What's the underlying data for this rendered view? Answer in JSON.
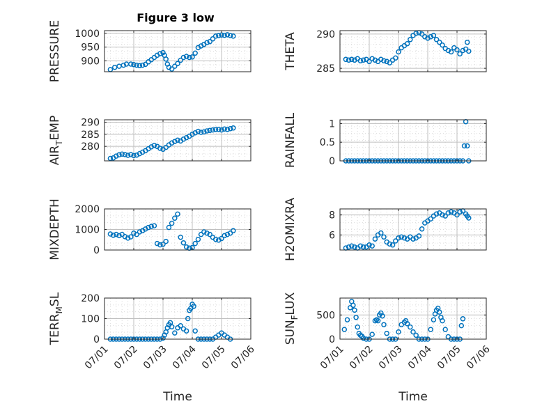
{
  "figure": {
    "title": "Figure 3 low"
  },
  "colors": {
    "marker": "#0072bd",
    "axis": "#262626",
    "grid": "#bfbfbf",
    "minor_grid": "#dcdcdc"
  },
  "chart_data": [
    {
      "type": "scatter",
      "title": "Figure 3 low",
      "xlabel": "",
      "ylabel": "PRESSURE",
      "ylim": [
        860,
        1010
      ],
      "yticks": [
        900,
        950,
        1000
      ],
      "ytick_labels": [
        "900",
        "950",
        "1000"
      ],
      "xlim": [
        0,
        5
      ],
      "xticks": [
        0,
        1,
        2,
        3,
        4,
        5
      ],
      "xtick_labels": [],
      "grid": true,
      "series": [
        {
          "x": [
            0.2,
            0.35,
            0.5,
            0.65,
            0.75,
            0.9,
            1.0,
            1.1,
            1.2,
            1.3,
            1.4,
            1.5,
            1.6,
            1.7,
            1.8,
            1.9,
            2.0,
            2.05,
            2.1,
            2.15,
            2.2,
            2.3,
            2.4,
            2.5,
            2.6,
            2.7,
            2.8,
            2.9,
            3.0,
            3.1,
            3.2,
            3.3,
            3.4,
            3.5,
            3.6,
            3.7,
            3.8,
            3.9,
            4.0,
            4.1,
            4.2,
            4.3,
            4.4
          ],
          "y": [
            868,
            876,
            880,
            884,
            888,
            888,
            886,
            884,
            882,
            884,
            887,
            896,
            904,
            912,
            920,
            926,
            930,
            920,
            906,
            888,
            876,
            870,
            880,
            890,
            902,
            912,
            916,
            912,
            914,
            928,
            948,
            954,
            960,
            966,
            970,
            980,
            990,
            992,
            994,
            993,
            995,
            992,
            990
          ]
        }
      ]
    },
    {
      "type": "scatter",
      "xlabel": "",
      "ylabel": "THETA",
      "ylim": [
        284.5,
        290.5
      ],
      "yticks": [
        285,
        290
      ],
      "ytick_labels": [
        "285",
        "290"
      ],
      "xlim": [
        0,
        5
      ],
      "xticks": [
        0,
        1,
        2,
        3,
        4,
        5
      ],
      "xtick_labels": [],
      "grid": true,
      "series": [
        {
          "x": [
            0.2,
            0.3,
            0.4,
            0.5,
            0.6,
            0.7,
            0.8,
            0.9,
            1.0,
            1.1,
            1.2,
            1.3,
            1.4,
            1.5,
            1.6,
            1.7,
            1.8,
            1.9,
            2.0,
            2.1,
            2.2,
            2.3,
            2.4,
            2.5,
            2.6,
            2.7,
            2.8,
            2.9,
            3.0,
            3.1,
            3.2,
            3.3,
            3.4,
            3.5,
            3.6,
            3.7,
            3.8,
            3.9,
            4.0,
            4.1,
            4.2,
            4.3,
            4.35,
            4.4
          ],
          "y": [
            286.3,
            286.2,
            286.3,
            286.2,
            286.4,
            286.1,
            286.2,
            286.3,
            286.0,
            286.4,
            286.2,
            286.0,
            286.3,
            286.1,
            286.0,
            285.8,
            286.2,
            286.5,
            287.4,
            288.0,
            288.3,
            288.6,
            289.2,
            289.8,
            290.1,
            290.2,
            290.0,
            289.6,
            289.4,
            289.6,
            289.8,
            289.2,
            288.8,
            288.4,
            287.9,
            287.6,
            287.4,
            288.0,
            287.7,
            287.1,
            287.6,
            287.8,
            288.8,
            287.5
          ]
        }
      ]
    },
    {
      "type": "scatter",
      "xlabel": "",
      "ylabel": "AIR_TEMP",
      "ylim": [
        274,
        291
      ],
      "yticks": [
        280,
        285,
        290
      ],
      "ytick_labels": [
        "280",
        "285",
        "290"
      ],
      "xlim": [
        0,
        5
      ],
      "xticks": [
        0,
        1,
        2,
        3,
        4,
        5
      ],
      "xtick_labels": [],
      "grid": true,
      "series": [
        {
          "x": [
            0.2,
            0.3,
            0.4,
            0.5,
            0.6,
            0.7,
            0.8,
            0.9,
            1.0,
            1.1,
            1.2,
            1.3,
            1.4,
            1.5,
            1.6,
            1.7,
            1.8,
            1.9,
            2.0,
            2.1,
            2.2,
            2.3,
            2.4,
            2.5,
            2.6,
            2.7,
            2.8,
            2.9,
            3.0,
            3.1,
            3.2,
            3.3,
            3.4,
            3.5,
            3.6,
            3.7,
            3.8,
            3.9,
            4.0,
            4.1,
            4.2,
            4.3,
            4.4
          ],
          "y": [
            275.0,
            275.2,
            276.0,
            276.5,
            276.8,
            276.6,
            276.3,
            276.6,
            276.2,
            276.4,
            277.0,
            277.6,
            278.2,
            279.0,
            279.8,
            280.4,
            280.0,
            279.2,
            278.8,
            279.6,
            280.6,
            281.4,
            282.0,
            282.6,
            282.2,
            283.0,
            283.6,
            284.2,
            285.0,
            285.6,
            286.2,
            285.8,
            286.0,
            286.4,
            286.6,
            286.8,
            287.0,
            287.0,
            286.8,
            287.2,
            287.0,
            287.3,
            287.6
          ]
        }
      ]
    },
    {
      "type": "scatter",
      "xlabel": "",
      "ylabel": "RAINFALL",
      "ylim": [
        0,
        1.1
      ],
      "yticks": [
        0,
        0.5,
        1
      ],
      "ytick_labels": [
        "0",
        "0.5",
        "1"
      ],
      "xlim": [
        0,
        5
      ],
      "xticks": [
        0,
        1,
        2,
        3,
        4,
        5
      ],
      "xtick_labels": [],
      "grid": true,
      "series": [
        {
          "x": [
            0.2,
            0.3,
            0.4,
            0.5,
            0.6,
            0.7,
            0.8,
            0.9,
            1.0,
            1.1,
            1.2,
            1.3,
            1.4,
            1.5,
            1.6,
            1.7,
            1.8,
            1.9,
            2.0,
            2.1,
            2.2,
            2.3,
            2.4,
            2.5,
            2.6,
            2.7,
            2.8,
            2.9,
            3.0,
            3.1,
            3.2,
            3.3,
            3.4,
            3.5,
            3.6,
            3.7,
            3.8,
            3.9,
            4.0,
            4.1,
            4.2,
            4.25,
            4.3,
            4.35,
            4.4
          ],
          "y": [
            0,
            0,
            0,
            0,
            0,
            0,
            0,
            0,
            0,
            0,
            0,
            0,
            0,
            0,
            0,
            0,
            0,
            0,
            0,
            0,
            0,
            0,
            0,
            0,
            0,
            0,
            0,
            0,
            0,
            0,
            0,
            0,
            0,
            0,
            0,
            0,
            0,
            0,
            0,
            0,
            0,
            0.4,
            1.05,
            0.4,
            0
          ]
        }
      ]
    },
    {
      "type": "scatter",
      "xlabel": "",
      "ylabel": "MIXDEPTH",
      "ylim": [
        0,
        2000
      ],
      "yticks": [
        0,
        1000,
        2000
      ],
      "ytick_labels": [
        "0",
        "1000",
        "2000"
      ],
      "xlim": [
        0,
        5
      ],
      "xticks": [
        0,
        1,
        2,
        3,
        4,
        5
      ],
      "xtick_labels": [],
      "grid": true,
      "series": [
        {
          "x": [
            0.2,
            0.3,
            0.4,
            0.5,
            0.6,
            0.7,
            0.8,
            0.9,
            1.0,
            1.1,
            1.2,
            1.3,
            1.4,
            1.5,
            1.6,
            1.7,
            1.8,
            1.9,
            2.0,
            2.1,
            2.2,
            2.3,
            2.4,
            2.5,
            2.6,
            2.7,
            2.8,
            2.9,
            3.0,
            3.1,
            3.2,
            3.3,
            3.4,
            3.5,
            3.6,
            3.7,
            3.8,
            3.9,
            4.0,
            4.1,
            4.2,
            4.3,
            4.4
          ],
          "y": [
            780,
            720,
            760,
            700,
            760,
            650,
            580,
            640,
            820,
            760,
            880,
            940,
            1020,
            1100,
            1150,
            1180,
            320,
            250,
            280,
            420,
            1100,
            1300,
            1550,
            1750,
            620,
            350,
            150,
            90,
            120,
            320,
            520,
            760,
            880,
            820,
            760,
            620,
            520,
            480,
            560,
            700,
            760,
            820,
            940
          ]
        }
      ]
    },
    {
      "type": "scatter",
      "xlabel": "",
      "ylabel": "H2OMIXRA",
      "ylim": [
        4.5,
        8.6
      ],
      "yticks": [
        6,
        8
      ],
      "ytick_labels": [
        "6",
        "8"
      ],
      "xlim": [
        0,
        5
      ],
      "xticks": [
        0,
        1,
        2,
        3,
        4,
        5
      ],
      "xtick_labels": [],
      "grid": true,
      "series": [
        {
          "x": [
            0.2,
            0.3,
            0.4,
            0.5,
            0.6,
            0.7,
            0.8,
            0.9,
            1.0,
            1.1,
            1.2,
            1.3,
            1.4,
            1.5,
            1.6,
            1.7,
            1.8,
            1.9,
            2.0,
            2.1,
            2.2,
            2.3,
            2.4,
            2.5,
            2.6,
            2.7,
            2.8,
            2.9,
            3.0,
            3.1,
            3.2,
            3.3,
            3.4,
            3.5,
            3.6,
            3.7,
            3.8,
            3.9,
            4.0,
            4.1,
            4.2,
            4.3,
            4.35,
            4.4
          ],
          "y": [
            4.7,
            4.8,
            4.9,
            4.8,
            4.7,
            4.9,
            4.8,
            4.8,
            5.0,
            4.9,
            5.6,
            6.0,
            6.2,
            5.8,
            5.3,
            5.1,
            5.0,
            5.4,
            5.7,
            5.8,
            5.7,
            5.6,
            5.8,
            5.6,
            5.7,
            5.9,
            6.6,
            7.2,
            7.4,
            7.6,
            7.9,
            8.1,
            8.2,
            8.0,
            7.9,
            8.2,
            8.3,
            8.2,
            8.0,
            8.3,
            8.4,
            8.1,
            7.9,
            7.7
          ]
        }
      ]
    },
    {
      "type": "scatter",
      "xlabel": "Time",
      "ylabel": "TERR_MSL",
      "ylim": [
        0,
        200
      ],
      "yticks": [
        0,
        100,
        200
      ],
      "ytick_labels": [
        "0",
        "100",
        "200"
      ],
      "xlim": [
        0,
        5
      ],
      "xticks": [
        0,
        1,
        2,
        3,
        4,
        5
      ],
      "xtick_labels": [
        "07/01",
        "07/02",
        "07/03",
        "07/04",
        "07/05",
        "07/06"
      ],
      "grid": true,
      "series": [
        {
          "x": [
            0.2,
            0.3,
            0.4,
            0.5,
            0.6,
            0.7,
            0.8,
            0.9,
            1.0,
            1.1,
            1.2,
            1.3,
            1.4,
            1.5,
            1.6,
            1.7,
            1.8,
            1.9,
            2.0,
            2.05,
            2.1,
            2.15,
            2.2,
            2.25,
            2.3,
            2.4,
            2.5,
            2.6,
            2.7,
            2.8,
            2.85,
            2.9,
            2.95,
            3.0,
            3.05,
            3.1,
            3.2,
            3.3,
            3.4,
            3.5,
            3.6,
            3.7,
            3.8,
            3.9,
            4.0,
            4.1,
            4.2,
            4.3
          ],
          "y": [
            0,
            0,
            0,
            0,
            0,
            0,
            0,
            0,
            0,
            0,
            0,
            0,
            0,
            0,
            0,
            0,
            0,
            0,
            5,
            20,
            35,
            55,
            70,
            80,
            60,
            30,
            55,
            65,
            50,
            40,
            100,
            140,
            150,
            170,
            160,
            40,
            0,
            0,
            0,
            0,
            0,
            0,
            10,
            20,
            30,
            20,
            10,
            0
          ]
        }
      ]
    },
    {
      "type": "scatter",
      "xlabel": "Time",
      "ylabel": "SUN_FLUX",
      "ylim": [
        0,
        850
      ],
      "yticks": [
        0,
        500
      ],
      "ytick_labels": [
        "0",
        "500"
      ],
      "xlim": [
        0,
        5
      ],
      "xticks": [
        0,
        1,
        2,
        3,
        4,
        5
      ],
      "xtick_labels": [
        "07/01",
        "07/02",
        "07/03",
        "07/04",
        "07/05",
        "07/06"
      ],
      "grid": true,
      "series": [
        {
          "x": [
            0.15,
            0.25,
            0.35,
            0.4,
            0.45,
            0.5,
            0.55,
            0.6,
            0.65,
            0.7,
            0.75,
            0.8,
            0.9,
            1.0,
            1.1,
            1.2,
            1.25,
            1.3,
            1.35,
            1.4,
            1.45,
            1.5,
            1.6,
            1.7,
            1.8,
            1.9,
            2.0,
            2.1,
            2.2,
            2.25,
            2.3,
            2.4,
            2.5,
            2.6,
            2.7,
            2.8,
            2.9,
            3.0,
            3.1,
            3.2,
            3.25,
            3.3,
            3.35,
            3.4,
            3.45,
            3.5,
            3.6,
            3.7,
            3.8,
            3.9,
            4.0,
            4.1,
            4.15,
            4.2
          ],
          "y": [
            200,
            400,
            650,
            780,
            700,
            600,
            450,
            250,
            120,
            80,
            60,
            20,
            0,
            0,
            100,
            380,
            400,
            380,
            500,
            540,
            480,
            300,
            120,
            0,
            0,
            0,
            150,
            300,
            350,
            380,
            320,
            250,
            150,
            80,
            0,
            0,
            0,
            0,
            200,
            400,
            520,
            600,
            640,
            560,
            450,
            380,
            200,
            50,
            0,
            0,
            0,
            0,
            280,
            420
          ]
        }
      ]
    }
  ]
}
